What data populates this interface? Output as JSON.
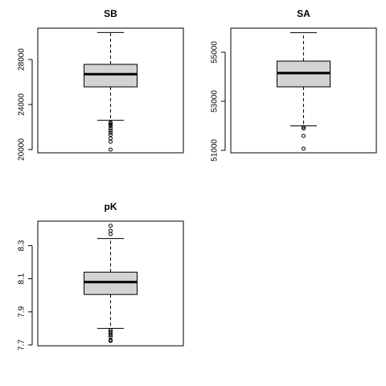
{
  "chart_data": [
    {
      "type": "box",
      "title": "SB",
      "color": "#d3d3d3",
      "ylim": [
        19714,
        30786
      ],
      "yticks": [
        20000,
        24000,
        28000
      ],
      "stats": {
        "whisker_low": 22600,
        "q1": 25570,
        "median": 26700,
        "q3": 27570,
        "whisker_high": 30400
      },
      "outliers": [
        22400,
        22300,
        22200,
        22100,
        21900,
        21700,
        21500,
        21300,
        21000,
        20700,
        20000
      ]
    },
    {
      "type": "box",
      "title": "SA",
      "color": "#d3d3d3",
      "ylim": [
        50900,
        55984
      ],
      "yticks": [
        51000,
        53000,
        55000
      ],
      "stats": {
        "whisker_low": 52000,
        "q1": 53590,
        "median": 54150,
        "q3": 54640,
        "whisker_high": 55800
      },
      "outliers": [
        51950,
        51890,
        51590,
        51070
      ]
    },
    {
      "type": "box",
      "title": "pK",
      "color": "#d3d3d3",
      "ylim": [
        7.695,
        8.448
      ],
      "yticks": [
        7.7,
        7.9,
        8.1,
        8.3
      ],
      "stats": {
        "whisker_low": 7.8,
        "q1": 8.005,
        "median": 8.08,
        "q3": 8.14,
        "whisker_high": 8.343
      },
      "outliers": [
        8.42,
        8.39,
        8.37,
        7.79,
        7.78,
        7.77,
        7.76,
        7.75,
        7.73,
        7.724
      ]
    }
  ]
}
